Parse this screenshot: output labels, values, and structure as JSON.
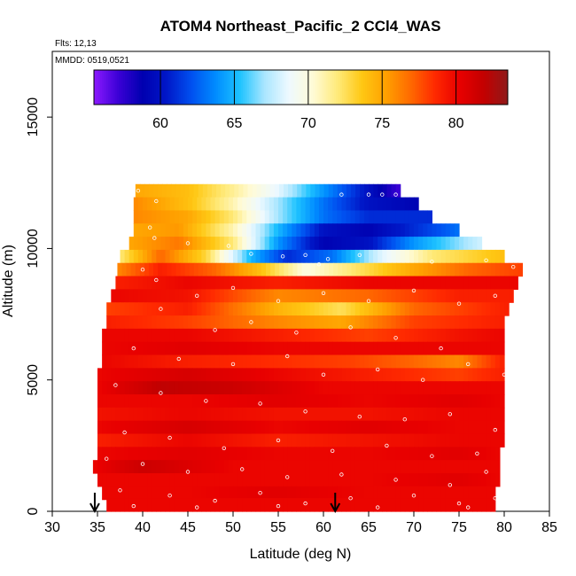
{
  "chart_data": {
    "type": "heatmap",
    "title": "ATOM4 Northeast_Pacific_2 CCl4_WAS",
    "flights_text": "Flts: 12,13",
    "dates_text": "MMDD: 0519,0521",
    "xlabel": "Latitude (deg N)",
    "ylabel": "Altitude (m)",
    "xlim": [
      30,
      85
    ],
    "ylim": [
      0,
      17500
    ],
    "xticks": [
      30,
      35,
      40,
      45,
      50,
      55,
      60,
      65,
      70,
      75,
      80,
      85
    ],
    "yticks": [
      0,
      5000,
      10000,
      15000
    ],
    "colorbar": {
      "range": [
        55.5,
        83.5
      ],
      "ticks": [
        60,
        65,
        70,
        75,
        80
      ],
      "colors": [
        "#8c1aff",
        "#3b00d6",
        "#0000b0",
        "#0018c8",
        "#0050f0",
        "#008cff",
        "#1ec3ff",
        "#a9e6ff",
        "#eef9ff",
        "#fffbd6",
        "#ffea7a",
        "#ffc814",
        "#ffa000",
        "#ff6a00",
        "#ff2a00",
        "#e80000",
        "#c40000",
        "#8f1a1a"
      ]
    },
    "flight_markers_lat": [
      34.7,
      61.3
    ],
    "profile": [
      {
        "alt": 12200,
        "lat_min": 39.2,
        "lat_max": 68.5,
        "values": [
          [
            39.2,
            75
          ],
          [
            45,
            74
          ],
          [
            50,
            71.5
          ],
          [
            55,
            68.5
          ],
          [
            60,
            64
          ],
          [
            65,
            60
          ],
          [
            68.5,
            57
          ]
        ]
      },
      {
        "alt": 11700,
        "lat_min": 39.0,
        "lat_max": 70.5,
        "values": [
          [
            39,
            76
          ],
          [
            45,
            74
          ],
          [
            50,
            71
          ],
          [
            55,
            67
          ],
          [
            60,
            63
          ],
          [
            65,
            60
          ],
          [
            70.5,
            59
          ]
        ]
      },
      {
        "alt": 11200,
        "lat_min": 39.0,
        "lat_max": 72.0,
        "values": [
          [
            39,
            76
          ],
          [
            45,
            75
          ],
          [
            50,
            72
          ],
          [
            55,
            67
          ],
          [
            60,
            63
          ],
          [
            65,
            61
          ],
          [
            72,
            61
          ]
        ]
      },
      {
        "alt": 10700,
        "lat_min": 39.0,
        "lat_max": 75.0,
        "values": [
          [
            39,
            75
          ],
          [
            44,
            75.5
          ],
          [
            50,
            71
          ],
          [
            55,
            65
          ],
          [
            60,
            60
          ],
          [
            65,
            59
          ],
          [
            70,
            61
          ],
          [
            75,
            63
          ]
        ]
      },
      {
        "alt": 10200,
        "lat_min": 38.5,
        "lat_max": 77.5,
        "values": [
          [
            38.5,
            75
          ],
          [
            44,
            76.5
          ],
          [
            50,
            72
          ],
          [
            55,
            64
          ],
          [
            60,
            59
          ],
          [
            65,
            60
          ],
          [
            70,
            64
          ],
          [
            77.5,
            68
          ]
        ]
      },
      {
        "alt": 9700,
        "lat_min": 37.5,
        "lat_max": 80.0,
        "values": [
          [
            37.5,
            72
          ],
          [
            42,
            77
          ],
          [
            47,
            73
          ],
          [
            52,
            65
          ],
          [
            56,
            61
          ],
          [
            61,
            63
          ],
          [
            66,
            68
          ],
          [
            72,
            72
          ],
          [
            80,
            74
          ]
        ]
      },
      {
        "alt": 9200,
        "lat_min": 37.2,
        "lat_max": 82.0,
        "values": [
          [
            37.2,
            76
          ],
          [
            42,
            79
          ],
          [
            48,
            77
          ],
          [
            53,
            74
          ],
          [
            58,
            70
          ],
          [
            63,
            72
          ],
          [
            70,
            75
          ],
          [
            76,
            77
          ],
          [
            82,
            78
          ]
        ]
      },
      {
        "alt": 8700,
        "lat_min": 37.0,
        "lat_max": 81.5,
        "values": [
          [
            37,
            79
          ],
          [
            45,
            80
          ],
          [
            55,
            79
          ],
          [
            65,
            80
          ],
          [
            75,
            80
          ],
          [
            81.5,
            80
          ]
        ]
      },
      {
        "alt": 8200,
        "lat_min": 36.5,
        "lat_max": 81.0,
        "values": [
          [
            36.5,
            80
          ],
          [
            45,
            79.5
          ],
          [
            55,
            76
          ],
          [
            65,
            77
          ],
          [
            75,
            79
          ],
          [
            81,
            79
          ]
        ]
      },
      {
        "alt": 7700,
        "lat_min": 36.0,
        "lat_max": 80.5,
        "values": [
          [
            36,
            78
          ],
          [
            45,
            79
          ],
          [
            55,
            74.5
          ],
          [
            62,
            72.5
          ],
          [
            70,
            77
          ],
          [
            80.5,
            79
          ]
        ]
      },
      {
        "alt": 7200,
        "lat_min": 36.0,
        "lat_max": 80.0,
        "values": [
          [
            36,
            79
          ],
          [
            45,
            78
          ],
          [
            55,
            76
          ],
          [
            62,
            75
          ],
          [
            70,
            78
          ],
          [
            80,
            79
          ]
        ]
      },
      {
        "alt": 6700,
        "lat_min": 35.5,
        "lat_max": 80.0,
        "values": [
          [
            35.5,
            80
          ],
          [
            45,
            80
          ],
          [
            55,
            79
          ],
          [
            65,
            78
          ],
          [
            75,
            79.5
          ],
          [
            80,
            80
          ]
        ]
      },
      {
        "alt": 6200,
        "lat_min": 35.5,
        "lat_max": 80.0,
        "values": [
          [
            35.5,
            80
          ],
          [
            45,
            80.5
          ],
          [
            55,
            80
          ],
          [
            65,
            80
          ],
          [
            75,
            80
          ],
          [
            80,
            80
          ]
        ]
      },
      {
        "alt": 5700,
        "lat_min": 35.5,
        "lat_max": 80.0,
        "values": [
          [
            35.5,
            80
          ],
          [
            45,
            79
          ],
          [
            55,
            78.5
          ],
          [
            63,
            78
          ],
          [
            70,
            77
          ],
          [
            75,
            76
          ],
          [
            80,
            79
          ]
        ]
      },
      {
        "alt": 5200,
        "lat_min": 35.0,
        "lat_max": 80.0,
        "values": [
          [
            35,
            80
          ],
          [
            45,
            81
          ],
          [
            55,
            80
          ],
          [
            65,
            79
          ],
          [
            75,
            78
          ],
          [
            80,
            79
          ]
        ]
      },
      {
        "alt": 4700,
        "lat_min": 35.0,
        "lat_max": 80.0,
        "values": [
          [
            35,
            80
          ],
          [
            42,
            82
          ],
          [
            50,
            81.5
          ],
          [
            60,
            80
          ],
          [
            70,
            80
          ],
          [
            80,
            80
          ]
        ]
      },
      {
        "alt": 4200,
        "lat_min": 35.0,
        "lat_max": 80.0,
        "values": [
          [
            35,
            80
          ],
          [
            45,
            80
          ],
          [
            55,
            80.5
          ],
          [
            65,
            80
          ],
          [
            75,
            80.5
          ],
          [
            80,
            80
          ]
        ]
      },
      {
        "alt": 3700,
        "lat_min": 35.0,
        "lat_max": 80.0,
        "values": [
          [
            35,
            79.5
          ],
          [
            45,
            80
          ],
          [
            55,
            79.5
          ],
          [
            65,
            79.5
          ],
          [
            75,
            80
          ],
          [
            80,
            80
          ]
        ]
      },
      {
        "alt": 3200,
        "lat_min": 35.0,
        "lat_max": 80.0,
        "values": [
          [
            35,
            80
          ],
          [
            45,
            81
          ],
          [
            55,
            80
          ],
          [
            65,
            80.5
          ],
          [
            75,
            80
          ],
          [
            80,
            80
          ]
        ]
      },
      {
        "alt": 2700,
        "lat_min": 35.0,
        "lat_max": 80.0,
        "values": [
          [
            35,
            79
          ],
          [
            45,
            80
          ],
          [
            55,
            79
          ],
          [
            65,
            79.5
          ],
          [
            75,
            80
          ],
          [
            80,
            80
          ]
        ]
      },
      {
        "alt": 2200,
        "lat_min": 35.0,
        "lat_max": 79.5,
        "values": [
          [
            35,
            80
          ],
          [
            45,
            80.5
          ],
          [
            55,
            80
          ],
          [
            65,
            80
          ],
          [
            75,
            80.5
          ],
          [
            79.5,
            80
          ]
        ]
      },
      {
        "alt": 1700,
        "lat_min": 34.5,
        "lat_max": 79.5,
        "values": [
          [
            34.5,
            80
          ],
          [
            40,
            81.5
          ],
          [
            50,
            80
          ],
          [
            60,
            80
          ],
          [
            70,
            80
          ],
          [
            79.5,
            80
          ]
        ]
      },
      {
        "alt": 1200,
        "lat_min": 35.0,
        "lat_max": 79.5,
        "values": [
          [
            35,
            80
          ],
          [
            45,
            80
          ],
          [
            55,
            80
          ],
          [
            65,
            80
          ],
          [
            75,
            80.5
          ],
          [
            79.5,
            80
          ]
        ]
      },
      {
        "alt": 700,
        "lat_min": 35.5,
        "lat_max": 79.0,
        "values": [
          [
            35.5,
            80
          ],
          [
            45,
            80
          ],
          [
            55,
            80.5
          ],
          [
            65,
            80
          ],
          [
            75,
            80
          ],
          [
            79,
            80
          ]
        ]
      },
      {
        "alt": 250,
        "lat_min": 36.0,
        "lat_max": 79.0,
        "values": [
          [
            36,
            80
          ],
          [
            45,
            80
          ],
          [
            55,
            80
          ],
          [
            65,
            80
          ],
          [
            75,
            80
          ],
          [
            79,
            80
          ]
        ]
      }
    ],
    "sample_points": [
      [
        39.5,
        12200
      ],
      [
        41.5,
        11800
      ],
      [
        40.8,
        10800
      ],
      [
        41.3,
        10400
      ],
      [
        45.0,
        10200
      ],
      [
        49.5,
        10100
      ],
      [
        52.0,
        9800
      ],
      [
        55.5,
        9700
      ],
      [
        58.0,
        9750
      ],
      [
        60.5,
        9600
      ],
      [
        64.0,
        9750
      ],
      [
        66.5,
        12050
      ],
      [
        62.0,
        12050
      ],
      [
        68.0,
        12050
      ],
      [
        65.0,
        12050
      ],
      [
        59.5,
        9400
      ],
      [
        72.0,
        9500
      ],
      [
        78.0,
        9550
      ],
      [
        81.0,
        9300
      ],
      [
        40.0,
        9200
      ],
      [
        41.5,
        8800
      ],
      [
        46.0,
        8200
      ],
      [
        50.0,
        8500
      ],
      [
        55.0,
        8000
      ],
      [
        60.0,
        8300
      ],
      [
        65.0,
        8000
      ],
      [
        70.0,
        8400
      ],
      [
        75.0,
        7900
      ],
      [
        79.0,
        8200
      ],
      [
        42.0,
        7700
      ],
      [
        48.0,
        6900
      ],
      [
        52.0,
        7200
      ],
      [
        57.0,
        6800
      ],
      [
        63.0,
        7000
      ],
      [
        68.0,
        6600
      ],
      [
        73.0,
        6200
      ],
      [
        39.0,
        6200
      ],
      [
        44.0,
        5800
      ],
      [
        50.0,
        5600
      ],
      [
        56.0,
        5900
      ],
      [
        60.0,
        5200
      ],
      [
        66.0,
        5400
      ],
      [
        71.0,
        5000
      ],
      [
        76.0,
        5600
      ],
      [
        80.0,
        5200
      ],
      [
        37.0,
        4800
      ],
      [
        42.0,
        4500
      ],
      [
        47.0,
        4200
      ],
      [
        53.0,
        4100
      ],
      [
        58.0,
        3800
      ],
      [
        64.0,
        3600
      ],
      [
        69.0,
        3500
      ],
      [
        74.0,
        3700
      ],
      [
        79.0,
        3100
      ],
      [
        38.0,
        3000
      ],
      [
        43.0,
        2800
      ],
      [
        49.0,
        2400
      ],
      [
        55.0,
        2700
      ],
      [
        61.0,
        2300
      ],
      [
        67.0,
        2500
      ],
      [
        72.0,
        2100
      ],
      [
        77.0,
        2200
      ],
      [
        36.0,
        2000
      ],
      [
        40.0,
        1800
      ],
      [
        45.0,
        1500
      ],
      [
        51.0,
        1600
      ],
      [
        56.0,
        1300
      ],
      [
        62.0,
        1400
      ],
      [
        68.0,
        1200
      ],
      [
        74.0,
        1000
      ],
      [
        78.0,
        1500
      ],
      [
        37.5,
        800
      ],
      [
        43.0,
        600
      ],
      [
        48.0,
        400
      ],
      [
        53.0,
        700
      ],
      [
        58.0,
        300
      ],
      [
        63.0,
        500
      ],
      [
        70.0,
        600
      ],
      [
        75.0,
        300
      ],
      [
        79.0,
        500
      ],
      [
        39.0,
        200
      ],
      [
        46.0,
        150
      ],
      [
        55.0,
        200
      ],
      [
        66.0,
        150
      ],
      [
        76.0,
        150
      ]
    ]
  }
}
